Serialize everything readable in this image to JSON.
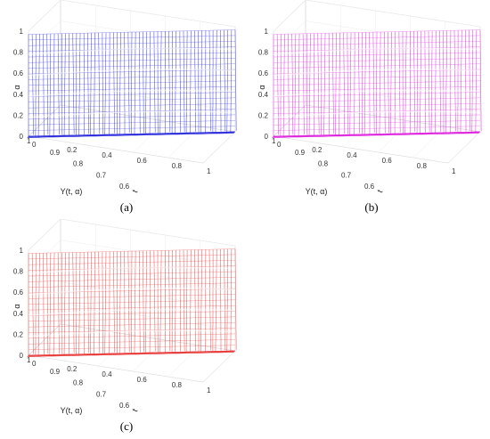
{
  "chart_data": [
    {
      "type": "surface3d",
      "panel_label": "(a)",
      "color": "#2b2bdc",
      "title": "",
      "xlabel": "t",
      "ylabel": "Y(t, α)",
      "zlabel": "α",
      "t_ticks": [
        "0",
        "0.2",
        "0.4",
        "0.6",
        "0.8",
        "1"
      ],
      "y_ticks": [
        "1",
        "0.9",
        "0.8",
        "0.7",
        "0.6"
      ],
      "z_ticks": [
        "0",
        "0.2",
        "0.4",
        "0.6",
        "0.8",
        "1"
      ],
      "t_range": [
        0,
        1
      ],
      "y_range": [
        0.6,
        1
      ],
      "alpha_range": [
        0,
        1
      ],
      "grid": true,
      "y_start": 1.0,
      "y_end": 0.6
    },
    {
      "type": "surface3d",
      "panel_label": "(b)",
      "color": "#dd22dd",
      "title": "",
      "xlabel": "t",
      "ylabel": "Y(t, α)",
      "zlabel": "α",
      "t_ticks": [
        "0",
        "0.2",
        "0.4",
        "0.6",
        "0.8",
        "1"
      ],
      "y_ticks": [
        "1",
        "0.9",
        "0.8",
        "0.7",
        "0.6"
      ],
      "z_ticks": [
        "0",
        "0.2",
        "0.4",
        "0.6",
        "0.8",
        "1"
      ],
      "t_range": [
        0,
        1
      ],
      "y_range": [
        0.6,
        1
      ],
      "alpha_range": [
        0,
        1
      ],
      "grid": true,
      "y_start": 1.0,
      "y_end": 0.6
    },
    {
      "type": "surface3d",
      "panel_label": "(c)",
      "color": "#e83838",
      "title": "",
      "xlabel": "t",
      "ylabel": "Y(t, α)",
      "zlabel": "α",
      "t_ticks": [
        "0",
        "0.2",
        "0.4",
        "0.6",
        "0.8",
        "1"
      ],
      "y_ticks": [
        "1",
        "0.9",
        "0.8",
        "0.7",
        "0.6"
      ],
      "z_ticks": [
        "0",
        "0.2",
        "0.4",
        "0.6",
        "0.8",
        "1"
      ],
      "t_range": [
        0,
        1
      ],
      "y_range": [
        0.6,
        1
      ],
      "alpha_range": [
        0,
        1
      ],
      "grid": true,
      "y_start": 1.0,
      "y_end": 0.6
    }
  ]
}
